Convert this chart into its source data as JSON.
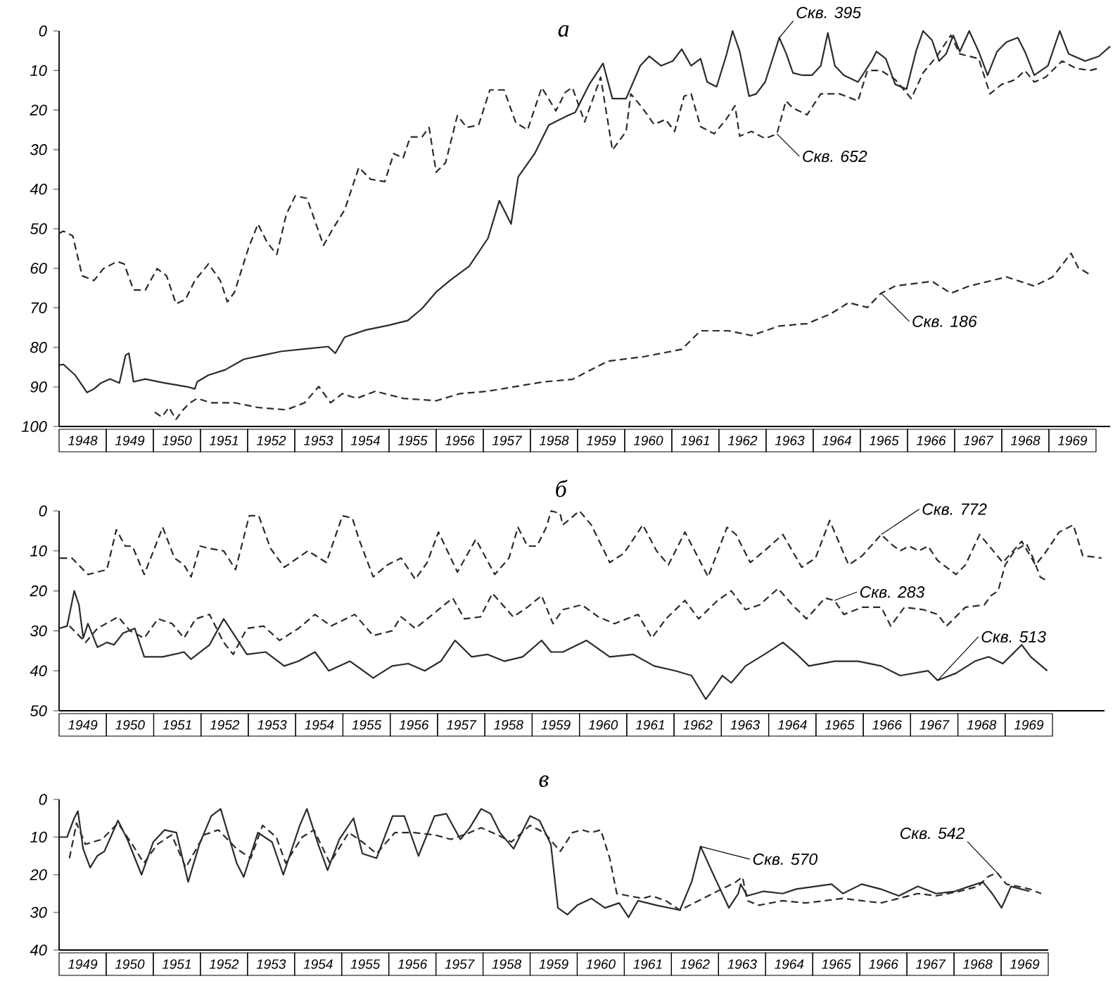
{
  "chart_data": [
    {
      "type": "line",
      "title": "а",
      "xlim": [
        1948,
        1970.3
      ],
      "ylim": [
        100,
        0
      ],
      "yticks": [
        0,
        10,
        20,
        30,
        40,
        50,
        60,
        70,
        80,
        90,
        100
      ],
      "xticks": [
        {
          "value": 1948.5,
          "label": "1948"
        },
        {
          "value": 1949.5,
          "label": "1949"
        },
        {
          "value": 1950.5,
          "label": "1950"
        },
        {
          "value": 1951.5,
          "label": "1951"
        },
        {
          "value": 1952.5,
          "label": "1952"
        },
        {
          "value": 1953.5,
          "label": "1953"
        },
        {
          "value": 1954.5,
          "label": "1954"
        },
        {
          "value": 1955.5,
          "label": "1955"
        },
        {
          "value": 1956.5,
          "label": "1956"
        },
        {
          "value": 1957.5,
          "label": "1957"
        },
        {
          "value": 1958.5,
          "label": "1958"
        },
        {
          "value": 1959.5,
          "label": "1959"
        },
        {
          "value": 1960.5,
          "label": "1960"
        },
        {
          "value": 1961.5,
          "label": "1961"
        },
        {
          "value": 1962.5,
          "label": "1962"
        },
        {
          "value": 1963.5,
          "label": "1963"
        },
        {
          "value": 1964.5,
          "label": "1964"
        },
        {
          "value": 1965.5,
          "label": "1965"
        },
        {
          "value": 1966.5,
          "label": "1966"
        },
        {
          "value": 1967.5,
          "label": "1967"
        },
        {
          "value": 1968.5,
          "label": "1968"
        },
        {
          "value": 1969.5,
          "label": "1969"
        }
      ],
      "series": [
        {
          "name": "Скв. 395",
          "color": "#2b2b2b",
          "line_style": "solid",
          "x": [
            1948.0,
            1948.09,
            1948.34,
            1948.59,
            1948.74,
            1948.89,
            1949.08,
            1949.28,
            1949.41,
            1949.48,
            1949.58,
            1949.83,
            1950.23,
            1950.73,
            1950.88,
            1950.93,
            1951.17,
            1951.52,
            1951.92,
            1952.32,
            1952.72,
            1953.21,
            1953.71,
            1953.86,
            1954.06,
            1954.51,
            1955.0,
            1955.4,
            1955.7,
            1956.0,
            1956.3,
            1956.7,
            1957.1,
            1957.34,
            1957.59,
            1957.74,
            1958.09,
            1958.39,
            1958.79,
            1958.95,
            1959.25,
            1959.54,
            1959.74,
            1960.03,
            1960.33,
            1960.52,
            1960.77,
            1961.02,
            1961.21,
            1961.41,
            1961.61,
            1961.75,
            1961.95,
            1962.15,
            1962.29,
            1962.44,
            1962.64,
            1962.79,
            1962.98,
            1963.28,
            1963.43,
            1963.57,
            1963.77,
            1963.97,
            1964.16,
            1964.31,
            1964.46,
            1964.65,
            1964.95,
            1965.24,
            1965.34,
            1965.54,
            1965.74,
            1965.98,
            1966.18,
            1966.33,
            1966.52,
            1966.67,
            1966.82,
            1966.97,
            1967.11,
            1967.31,
            1967.51,
            1967.7,
            1967.9,
            1968.1,
            1968.34,
            1968.49,
            1968.69,
            1968.98,
            1969.23,
            1969.42,
            1969.77,
            1970.06,
            1970.3
          ],
          "values": [
            84.5,
            84.3,
            87,
            91.4,
            90.5,
            89,
            88,
            89,
            82,
            81.5,
            88.7,
            88,
            89,
            90,
            90.5,
            88.7,
            87,
            85.7,
            83,
            82,
            81,
            80.4,
            79.8,
            81.5,
            77.4,
            75.6,
            74.4,
            73.2,
            70.2,
            66,
            63,
            59.5,
            52.4,
            42.9,
            48.8,
            36.9,
            31,
            23.8,
            21.4,
            20.6,
            13.5,
            8.2,
            17.1,
            17.1,
            8.8,
            6.4,
            8.8,
            7.6,
            4.6,
            8.8,
            7,
            12.9,
            14.1,
            6.4,
            0,
            5.2,
            16.5,
            15.9,
            12.9,
            1.7,
            5.8,
            10.6,
            11.2,
            11.2,
            8.8,
            0.5,
            8.8,
            11.2,
            12.9,
            7.6,
            5.2,
            7,
            13.5,
            14.7,
            5.2,
            0,
            2.3,
            7.6,
            5.8,
            1.1,
            5.2,
            0,
            5.2,
            11.2,
            5.2,
            2.8,
            1.7,
            5.2,
            11.2,
            8.8,
            0,
            5.8,
            7.6,
            6.4,
            3.9
          ]
        },
        {
          "name": "Скв. 652",
          "color": "#2b2b2b",
          "line_style": "dashed",
          "x": [
            1948.0,
            1948.09,
            1948.29,
            1948.49,
            1948.74,
            1948.94,
            1949.23,
            1949.38,
            1949.58,
            1949.83,
            1950.08,
            1950.28,
            1950.48,
            1950.68,
            1950.88,
            1951.17,
            1951.42,
            1951.57,
            1951.72,
            1952.02,
            1952.22,
            1952.42,
            1952.62,
            1952.82,
            1953.01,
            1953.26,
            1953.61,
            1953.81,
            1954.06,
            1954.36,
            1954.61,
            1954.91,
            1955.1,
            1955.3,
            1955.45,
            1955.7,
            1955.85,
            1956.0,
            1956.2,
            1956.45,
            1956.65,
            1956.9,
            1957.14,
            1957.44,
            1957.69,
            1957.94,
            1958.24,
            1958.54,
            1958.74,
            1958.89,
            1959.15,
            1959.49,
            1959.74,
            1960.03,
            1960.13,
            1960.38,
            1960.62,
            1960.87,
            1961.06,
            1961.26,
            1961.41,
            1961.61,
            1961.9,
            1962.15,
            1962.34,
            1962.44,
            1962.69,
            1962.98,
            1963.23,
            1963.42,
            1963.57,
            1963.87,
            1964.16,
            1964.56,
            1964.95,
            1965.15,
            1965.44,
            1965.74,
            1966.08,
            1966.33,
            1966.62,
            1966.92,
            1967.11,
            1967.31,
            1967.51,
            1967.75,
            1968.0,
            1968.29,
            1968.49,
            1968.69,
            1968.93,
            1969.28,
            1969.57,
            1969.87,
            1970.06
          ],
          "values": [
            51.2,
            50.6,
            51.8,
            61.9,
            63.1,
            60.1,
            58.3,
            58.9,
            65.5,
            65.5,
            60.1,
            61.9,
            69,
            67.9,
            63.1,
            58.9,
            63.1,
            68.5,
            66.1,
            54.8,
            48.8,
            53.6,
            56.5,
            46.4,
            41.7,
            42.3,
            54.2,
            50,
            45.2,
            34.5,
            37.5,
            38.1,
            31,
            32.1,
            26.8,
            26.8,
            24.4,
            35.7,
            33.3,
            21.4,
            24.4,
            23.8,
            14.9,
            14.9,
            23.2,
            25,
            14.3,
            20.2,
            15.5,
            14.3,
            23,
            11.7,
            30.1,
            25.4,
            15.9,
            19.5,
            23.6,
            22.4,
            25.4,
            16.5,
            15.9,
            24.2,
            26,
            22.4,
            18.9,
            26.6,
            25.4,
            27.2,
            26,
            17.7,
            19.5,
            21.2,
            15.9,
            15.9,
            17.7,
            10,
            10,
            12.3,
            17.1,
            10.6,
            6.4,
            1.1,
            5.8,
            6.4,
            7,
            15.9,
            13.5,
            12.3,
            10,
            12.9,
            11.7,
            7.6,
            9.4,
            10,
            9.4
          ]
        },
        {
          "name": "Скв. 186",
          "color": "#2b2b2b",
          "line_style": "dashed",
          "x": [
            1950.03,
            1950.18,
            1950.33,
            1950.48,
            1950.63,
            1950.78,
            1950.93,
            1951.22,
            1951.72,
            1952.22,
            1952.82,
            1953.21,
            1953.51,
            1953.76,
            1954.01,
            1954.31,
            1954.71,
            1955.3,
            1956.0,
            1956.5,
            1957.09,
            1957.69,
            1958.29,
            1958.89,
            1959.64,
            1960.43,
            1961.21,
            1961.61,
            1962.2,
            1962.69,
            1963.28,
            1963.87,
            1964.36,
            1964.75,
            1965.15,
            1965.44,
            1965.74,
            1966.52,
            1966.92,
            1967.31,
            1968.1,
            1968.69,
            1969.08,
            1969.47,
            1969.62,
            1969.87
          ],
          "values": [
            96.4,
            97.6,
            95.2,
            98.2,
            95.8,
            94,
            92.9,
            94,
            94,
            95.2,
            95.8,
            94,
            89.9,
            94,
            91.7,
            92.9,
            91.1,
            92.9,
            93.5,
            91.7,
            91.1,
            89.9,
            88.7,
            88.1,
            83.5,
            82.3,
            80.5,
            75.8,
            75.8,
            77,
            74.6,
            74,
            71.6,
            68.7,
            69.9,
            66.3,
            64.5,
            63.3,
            66.3,
            64.5,
            62.2,
            64.5,
            62.2,
            56.2,
            59.8,
            61.6
          ]
        }
      ]
    },
    {
      "type": "line",
      "title": "б",
      "xlim": [
        1949,
        1971.1
      ],
      "ylim": [
        50,
        0
      ],
      "yticks": [
        0,
        10,
        20,
        30,
        40,
        50
      ],
      "xticks": [
        {
          "value": 1949.5,
          "label": "1949"
        },
        {
          "value": 1950.5,
          "label": "1950"
        },
        {
          "value": 1951.5,
          "label": "1951"
        },
        {
          "value": 1952.5,
          "label": "1952"
        },
        {
          "value": 1953.5,
          "label": "1953"
        },
        {
          "value": 1954.5,
          "label": "1954"
        },
        {
          "value": 1955.5,
          "label": "1955"
        },
        {
          "value": 1956.5,
          "label": "1956"
        },
        {
          "value": 1957.5,
          "label": "1957"
        },
        {
          "value": 1958.5,
          "label": "1958"
        },
        {
          "value": 1959.5,
          "label": "1959"
        },
        {
          "value": 1960.5,
          "label": "1960"
        },
        {
          "value": 1961.5,
          "label": "1961"
        },
        {
          "value": 1962.5,
          "label": "1962"
        },
        {
          "value": 1963.5,
          "label": "1963"
        },
        {
          "value": 1964.5,
          "label": "1964"
        },
        {
          "value": 1965.5,
          "label": "1965"
        },
        {
          "value": 1966.5,
          "label": "1966"
        },
        {
          "value": 1967.5,
          "label": "1967"
        },
        {
          "value": 1968.5,
          "label": "1968"
        },
        {
          "value": 1969.5,
          "label": "1969"
        }
      ],
      "series": [
        {
          "name": "Скв. 772",
          "color": "#2b2b2b",
          "line_style": "dashed",
          "x": [
            1949.02,
            1949.27,
            1949.61,
            1950.01,
            1950.21,
            1950.4,
            1950.55,
            1950.8,
            1951.19,
            1951.44,
            1951.64,
            1951.79,
            1951.98,
            1952.18,
            1952.48,
            1952.73,
            1953.02,
            1953.22,
            1953.47,
            1953.76,
            1954.26,
            1954.65,
            1954.99,
            1955.2,
            1955.34,
            1955.64,
            1955.94,
            1956.23,
            1956.53,
            1956.78,
            1957.02,
            1957.42,
            1957.81,
            1958.21,
            1958.51,
            1958.7,
            1958.9,
            1959.1,
            1959.3,
            1959.4,
            1959.59,
            1959.65,
            1960.0,
            1960.25,
            1960.64,
            1960.94,
            1961.34,
            1961.63,
            1961.88,
            1962.23,
            1962.72,
            1963.12,
            1963.31,
            1963.61,
            1963.91,
            1964.3,
            1964.7,
            1964.99,
            1965.29,
            1965.69,
            1965.98,
            1966.38,
            1966.58,
            1966.78,
            1966.97,
            1967.17,
            1967.37,
            1967.57,
            1967.96,
            1968.16,
            1968.46,
            1968.95,
            1969.35,
            1969.64,
            1969.84,
            1970.14,
            1970.44,
            1970.64,
            1971.04
          ],
          "values": [
            11.8,
            11.8,
            15.9,
            14.7,
            4.7,
            8.8,
            8.8,
            15.9,
            4.1,
            11.8,
            13.5,
            16.5,
            8.8,
            9.4,
            10,
            14.7,
            1.2,
            1.2,
            9.4,
            14.1,
            10,
            12.9,
            1.2,
            1.8,
            7.1,
            16.5,
            13.5,
            11.8,
            17.1,
            12.9,
            5.3,
            15.3,
            7.1,
            15.9,
            11.8,
            4.1,
            8.8,
            8.8,
            4.1,
            0,
            0.6,
            3.5,
            0,
            3.5,
            12.9,
            10.6,
            3.5,
            10,
            13.5,
            5.3,
            16.5,
            4.1,
            5.9,
            12.9,
            10,
            5.9,
            14.1,
            11.8,
            2.4,
            13.5,
            11.2,
            5.9,
            8.2,
            10,
            8.8,
            10,
            8.8,
            12.4,
            15.9,
            13.5,
            5.9,
            12.9,
            7.6,
            13.5,
            10.6,
            5.3,
            3.5,
            11.2,
            11.8
          ]
        },
        {
          "name": "Скв. 283",
          "color": "#2b2b2b",
          "line_style": "dashed",
          "x": [
            1949.22,
            1949.56,
            1949.81,
            1950.25,
            1950.5,
            1950.8,
            1951.09,
            1951.39,
            1951.64,
            1951.89,
            1952.18,
            1952.48,
            1952.68,
            1952.97,
            1953.32,
            1953.66,
            1954.06,
            1954.41,
            1954.75,
            1955.25,
            1955.64,
            1956.04,
            1956.23,
            1956.53,
            1957.02,
            1957.32,
            1957.57,
            1957.91,
            1958.16,
            1958.6,
            1958.9,
            1959.2,
            1959.44,
            1959.65,
            1960.05,
            1960.4,
            1960.74,
            1961.24,
            1961.53,
            1961.83,
            1962.23,
            1962.52,
            1962.92,
            1963.21,
            1963.51,
            1963.81,
            1964.2,
            1964.5,
            1964.8,
            1965.19,
            1965.39,
            1965.59,
            1965.98,
            1966.38,
            1966.58,
            1966.87,
            1967.27,
            1967.57,
            1967.76,
            1968.16,
            1968.56,
            1968.7,
            1968.85,
            1969.0,
            1969.2,
            1969.45,
            1969.59,
            1969.74,
            1969.89
          ],
          "values": [
            28.8,
            32.9,
            29.4,
            26.5,
            30,
            31.8,
            27,
            28.2,
            31.8,
            27,
            25.9,
            32.9,
            35.9,
            29.4,
            28.8,
            32.4,
            29.4,
            25.9,
            28.8,
            25.9,
            31.2,
            30,
            26.5,
            29.4,
            24.7,
            21.8,
            27,
            26.5,
            20.6,
            26.5,
            24.1,
            21.2,
            28.2,
            24.7,
            23.5,
            26.5,
            28.2,
            25.9,
            31.8,
            27,
            22.4,
            27,
            22.4,
            20,
            24.7,
            23.5,
            19.4,
            23.5,
            27,
            21.8,
            22.4,
            25.9,
            24.1,
            24.1,
            28.8,
            24.1,
            24.7,
            25.9,
            28.8,
            24.1,
            23.5,
            21.2,
            20,
            13.5,
            10,
            8.2,
            11.8,
            16.5,
            17.6
          ]
        },
        {
          "name": "Скв. 513",
          "color": "#2b2b2b",
          "line_style": "solid",
          "x": [
            1949.0,
            1949.17,
            1949.32,
            1949.42,
            1949.51,
            1949.61,
            1949.81,
            1950.01,
            1950.16,
            1950.35,
            1950.6,
            1950.8,
            1951.19,
            1951.64,
            1951.79,
            1952.18,
            1952.48,
            1952.68,
            1952.97,
            1953.37,
            1953.76,
            1954.06,
            1954.41,
            1954.7,
            1955.15,
            1955.64,
            1956.04,
            1956.38,
            1956.73,
            1957.07,
            1957.37,
            1957.72,
            1958.06,
            1958.41,
            1958.8,
            1959.2,
            1959.4,
            1959.65,
            1960.15,
            1960.64,
            1961.14,
            1961.58,
            1962.03,
            1962.37,
            1962.67,
            1962.82,
            1963.02,
            1963.21,
            1963.51,
            1963.91,
            1964.3,
            1964.6,
            1964.85,
            1965.39,
            1965.89,
            1966.38,
            1966.78,
            1967.37,
            1967.57,
            1967.96,
            1968.36,
            1968.65,
            1968.95,
            1969.35,
            1969.54,
            1969.89
          ],
          "values": [
            29.4,
            28.8,
            20,
            23.5,
            31.8,
            28.2,
            34.1,
            32.9,
            33.5,
            30.6,
            29.4,
            36.5,
            36.5,
            35.3,
            37.1,
            33.5,
            27,
            30.6,
            35.9,
            35.3,
            38.8,
            37.6,
            35.3,
            40,
            37.6,
            41.8,
            38.8,
            38.2,
            40,
            37.6,
            32.4,
            36.5,
            35.9,
            37.6,
            36.5,
            32.4,
            35.3,
            35.3,
            32.4,
            36.5,
            35.9,
            38.8,
            40,
            41.2,
            47.1,
            44.7,
            41.2,
            43,
            38.8,
            35.9,
            32.9,
            35.9,
            38.8,
            37.6,
            37.6,
            38.8,
            41.2,
            40,
            42.4,
            40.6,
            37.6,
            36.5,
            38.2,
            33.5,
            36.5,
            40
          ]
        }
      ]
    },
    {
      "type": "line",
      "title": "в",
      "xlim": [
        1949,
        1970
      ],
      "ylim": [
        40,
        0
      ],
      "yticks": [
        0,
        10,
        20,
        30,
        40
      ],
      "xticks": [
        {
          "value": 1949.5,
          "label": "1949"
        },
        {
          "value": 1950.5,
          "label": "1950"
        },
        {
          "value": 1951.5,
          "label": "1951"
        },
        {
          "value": 1952.5,
          "label": "1952"
        },
        {
          "value": 1953.5,
          "label": "1953"
        },
        {
          "value": 1954.5,
          "label": "1954"
        },
        {
          "value": 1955.5,
          "label": "1955"
        },
        {
          "value": 1956.5,
          "label": "1956"
        },
        {
          "value": 1957.5,
          "label": "1957"
        },
        {
          "value": 1958.5,
          "label": "1958"
        },
        {
          "value": 1959.5,
          "label": "1959"
        },
        {
          "value": 1960.5,
          "label": "1960"
        },
        {
          "value": 1961.5,
          "label": "1961"
        },
        {
          "value": 1962.5,
          "label": "1962"
        },
        {
          "value": 1963.5,
          "label": "1963"
        },
        {
          "value": 1964.5,
          "label": "1964"
        },
        {
          "value": 1965.5,
          "label": "1965"
        },
        {
          "value": 1966.5,
          "label": "1966"
        },
        {
          "value": 1967.5,
          "label": "1967"
        },
        {
          "value": 1968.5,
          "label": "1968"
        },
        {
          "value": 1969.5,
          "label": "1969"
        }
      ],
      "series": [
        {
          "name": "Скв. 570",
          "color": "#2b2b2b",
          "line_style": "solid",
          "x": [
            1949.0,
            1949.17,
            1949.32,
            1949.4,
            1949.51,
            1949.66,
            1949.81,
            1949.96,
            1950.25,
            1950.45,
            1950.75,
            1951.0,
            1951.24,
            1951.49,
            1951.74,
            1951.98,
            1952.23,
            1952.43,
            1952.77,
            1952.92,
            1953.22,
            1953.52,
            1953.76,
            1954.11,
            1954.26,
            1954.5,
            1954.7,
            1954.95,
            1955.25,
            1955.44,
            1955.74,
            1956.08,
            1956.33,
            1956.63,
            1956.97,
            1957.22,
            1957.52,
            1957.72,
            1957.96,
            1958.16,
            1958.36,
            1958.65,
            1959.0,
            1959.2,
            1959.44,
            1959.59,
            1959.79,
            1960.0,
            1960.3,
            1960.59,
            1960.89,
            1961.09,
            1961.29,
            1961.68,
            1962.18,
            1962.43,
            1962.62,
            1962.87,
            1963.22,
            1963.42,
            1963.47,
            1963.61,
            1963.96,
            1964.36,
            1964.65,
            1965.05,
            1965.4,
            1965.64,
            1966.04,
            1966.44,
            1966.83,
            1967.23,
            1967.62,
            1968.02,
            1968.32,
            1968.61,
            1968.81,
            1969.01,
            1969.21,
            1969.6
          ],
          "values": [
            10,
            10,
            5,
            3.1,
            13.1,
            18.1,
            15,
            13.8,
            5.6,
            10.6,
            20,
            11.3,
            8.1,
            8.8,
            21.9,
            11.9,
            4.4,
            2.5,
            16.9,
            20.6,
            8.8,
            11.3,
            20,
            6.9,
            2.5,
            11.9,
            18.8,
            10.6,
            5,
            14.4,
            15.6,
            4.4,
            4.4,
            15,
            4.4,
            3.8,
            10.6,
            7.5,
            2.5,
            3.8,
            8.8,
            13.1,
            4.4,
            5.6,
            11.9,
            28.8,
            30.6,
            28.1,
            26.3,
            28.8,
            27.5,
            31.3,
            26.9,
            28.1,
            29.4,
            21.9,
            12.5,
            19.4,
            28.8,
            25,
            22.5,
            25.6,
            24.4,
            25,
            23.8,
            23.1,
            22.5,
            25,
            22.5,
            23.8,
            25.6,
            23.1,
            25,
            24.4,
            23.1,
            21.9,
            25,
            28.8,
            23.1,
            24.4
          ]
        },
        {
          "name": "Скв. 542",
          "color": "#2b2b2b",
          "line_style": "dashed",
          "x": [
            1949.22,
            1949.37,
            1949.56,
            1949.91,
            1950.25,
            1950.55,
            1950.8,
            1951.09,
            1951.39,
            1951.69,
            1952.08,
            1952.38,
            1952.77,
            1953.07,
            1953.32,
            1953.61,
            1953.81,
            1954.16,
            1954.41,
            1954.75,
            1955.15,
            1955.44,
            1955.74,
            1956.13,
            1956.53,
            1956.97,
            1957.32,
            1957.72,
            1957.96,
            1958.31,
            1958.6,
            1959.0,
            1959.3,
            1959.64,
            1959.9,
            1960.1,
            1960.3,
            1960.5,
            1960.69,
            1960.84,
            1961.09,
            1961.39,
            1961.58,
            1961.88,
            1962.18,
            1962.67,
            1963.07,
            1963.37,
            1963.51,
            1963.61,
            1963.86,
            1964.36,
            1964.85,
            1965.25,
            1965.64,
            1966.04,
            1966.44,
            1966.83,
            1967.23,
            1967.62,
            1968.12,
            1968.51,
            1968.71,
            1968.91,
            1969.11,
            1969.36,
            1969.6,
            1969.85
          ],
          "values": [
            15.6,
            6.3,
            11.9,
            10.6,
            6.3,
            11.9,
            16.9,
            11.9,
            9.4,
            18.1,
            9.4,
            8.1,
            13.1,
            15.6,
            6.9,
            10,
            16.9,
            10,
            8.1,
            16.9,
            8.8,
            11.3,
            14.4,
            8.8,
            8.8,
            9.4,
            10.6,
            8.8,
            7.5,
            9.4,
            11.3,
            6.9,
            8.8,
            13.8,
            8.8,
            8.1,
            8.8,
            8.1,
            15.6,
            25,
            25.6,
            26.3,
            25.6,
            26.9,
            29.4,
            26.3,
            23.8,
            21.9,
            20.6,
            26.9,
            28.1,
            26.9,
            27.5,
            26.9,
            26.3,
            26.9,
            27.5,
            26.3,
            25,
            25.6,
            24.4,
            23.1,
            20.6,
            19.4,
            22.5,
            23.1,
            23.8,
            25
          ]
        }
      ]
    }
  ]
}
